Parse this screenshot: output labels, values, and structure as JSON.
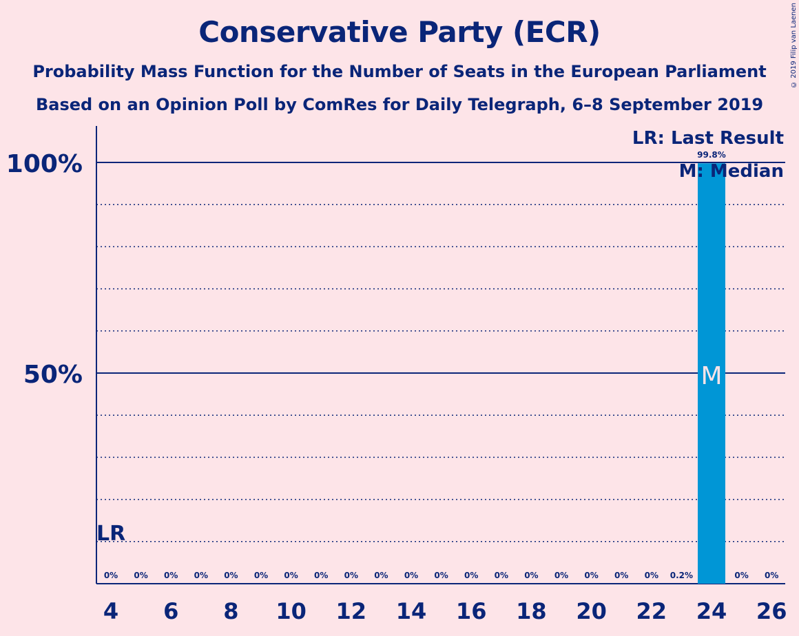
{
  "chart_data": {
    "type": "bar",
    "title": "Conservative Party (ECR)",
    "subtitle1": "Probability Mass Function for the Number of Seats in the European Parliament",
    "subtitle2": "Based on an Opinion Poll by ComRes for Daily Telegraph, 6–8 September 2019",
    "copyright": "© 2019 Filip van Laenen",
    "x": [
      4,
      5,
      6,
      7,
      8,
      9,
      10,
      11,
      12,
      13,
      14,
      15,
      16,
      17,
      18,
      19,
      20,
      21,
      22,
      23,
      24,
      25,
      26
    ],
    "values": [
      0,
      0,
      0,
      0,
      0,
      0,
      0,
      0,
      0,
      0,
      0,
      0,
      0,
      0,
      0,
      0,
      0,
      0,
      0,
      0.2,
      99.8,
      0,
      0
    ],
    "value_labels": [
      "0%",
      "0%",
      "0%",
      "0%",
      "0%",
      "0%",
      "0%",
      "0%",
      "0%",
      "0%",
      "0%",
      "0%",
      "0%",
      "0%",
      "0%",
      "0%",
      "0%",
      "0%",
      "0%",
      "0.2%",
      "99.8%",
      "0%",
      "0%"
    ],
    "x_tick_labels": [
      "4",
      "6",
      "8",
      "10",
      "12",
      "14",
      "16",
      "18",
      "20",
      "22",
      "24",
      "26"
    ],
    "y_tick_labels": [
      "50%",
      "100%"
    ],
    "ylim": [
      0,
      100
    ],
    "xlim": [
      4,
      26
    ],
    "last_result": 4,
    "last_result_label": "LR",
    "median": 24,
    "median_label": "M",
    "legend": [
      "LR: Last Result",
      "M: Median"
    ],
    "legend_position": "top-right",
    "colors": {
      "bar": "#0096d6",
      "text": "#0a2578",
      "background": "#fde4e8",
      "median_text": "#fde4e8"
    }
  }
}
